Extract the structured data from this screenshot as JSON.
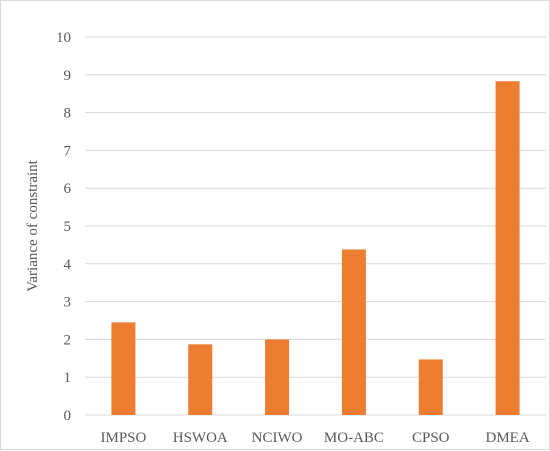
{
  "chart_data": {
    "type": "bar",
    "categories": [
      "IMPSO",
      "HSWOA",
      "NCIWO",
      "MO-ABC",
      "CPSO",
      "DMEA"
    ],
    "values": [
      2.45,
      1.87,
      2.0,
      4.38,
      1.47,
      8.83
    ],
    "title": "",
    "xlabel": "",
    "ylabel": "Variance of constraint",
    "ylim": [
      0,
      10
    ],
    "yticks": [
      0,
      1,
      2,
      3,
      4,
      5,
      6,
      7,
      8,
      9,
      10
    ],
    "grid": true,
    "legend": "none",
    "bar_color": "#ED7D31",
    "grid_color": "#D9D9D9"
  }
}
